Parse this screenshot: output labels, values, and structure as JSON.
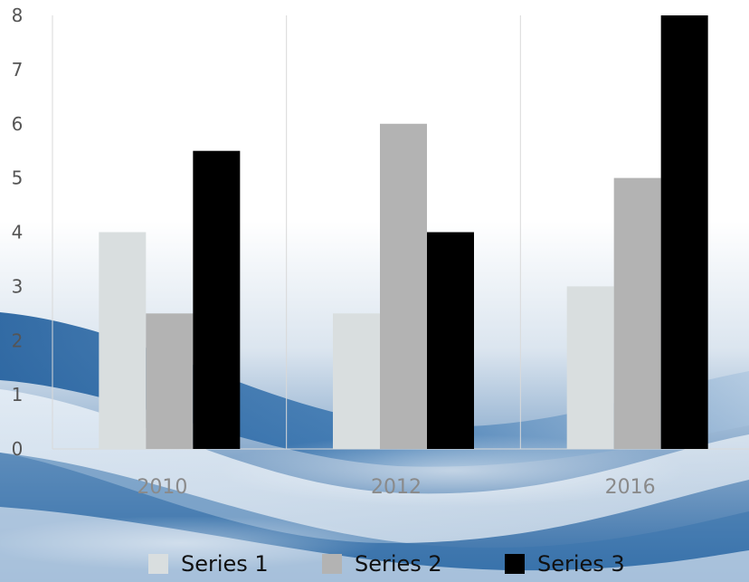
{
  "chart_data": {
    "type": "bar",
    "categories": [
      "2010",
      "2012",
      "2016"
    ],
    "series": [
      {
        "name": "Series 1",
        "values": [
          4,
          2.5,
          3
        ],
        "color": "#d9dedf"
      },
      {
        "name": "Series 2",
        "values": [
          2.5,
          6,
          5
        ],
        "color": "#b3b3b3"
      },
      {
        "name": "Series 3",
        "values": [
          5.5,
          4,
          8
        ],
        "color": "#000000"
      }
    ],
    "ylim": [
      0,
      8
    ],
    "yticks": [
      "0",
      "1",
      "2",
      "3",
      "4",
      "5",
      "6",
      "7",
      "8"
    ],
    "grid": "vertical",
    "legend_position": "bottom",
    "background": "blue-wave"
  }
}
